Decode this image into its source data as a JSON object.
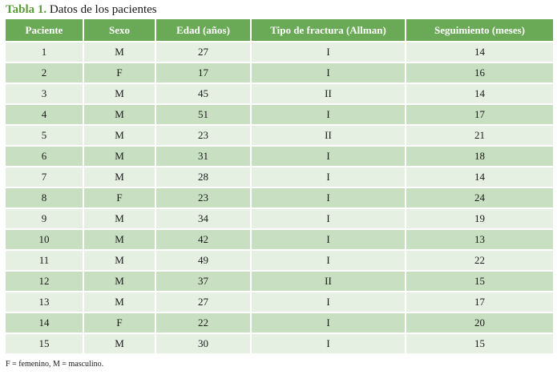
{
  "caption": {
    "label": "Tabla 1.",
    "text": "Datos de los pacientes"
  },
  "table": {
    "headers": [
      "Paciente",
      "Sexo",
      "Edad (años)",
      "Tipo de fractura (Allman)",
      "Seguimiento (meses)"
    ],
    "rows": [
      [
        "1",
        "M",
        "27",
        "I",
        "14"
      ],
      [
        "2",
        "F",
        "17",
        "I",
        "16"
      ],
      [
        "3",
        "M",
        "45",
        "II",
        "14"
      ],
      [
        "4",
        "M",
        "51",
        "I",
        "17"
      ],
      [
        "5",
        "M",
        "23",
        "II",
        "21"
      ],
      [
        "6",
        "M",
        "31",
        "I",
        "18"
      ],
      [
        "7",
        "M",
        "28",
        "I",
        "14"
      ],
      [
        "8",
        "F",
        "23",
        "I",
        "24"
      ],
      [
        "9",
        "M",
        "34",
        "I",
        "19"
      ],
      [
        "10",
        "M",
        "42",
        "I",
        "13"
      ],
      [
        "11",
        "M",
        "49",
        "I",
        "22"
      ],
      [
        "12",
        "M",
        "37",
        "II",
        "15"
      ],
      [
        "13",
        "M",
        "27",
        "I",
        "17"
      ],
      [
        "14",
        "F",
        "22",
        "I",
        "20"
      ],
      [
        "15",
        "M",
        "30",
        "I",
        "15"
      ]
    ]
  },
  "footnote": "F = femenino, M = masculino.",
  "colors": {
    "caption_label": "#5a9a3c",
    "header_bg": "#6aaa57",
    "row_light": "#e6f0e2",
    "row_dark": "#c8e0c1"
  }
}
